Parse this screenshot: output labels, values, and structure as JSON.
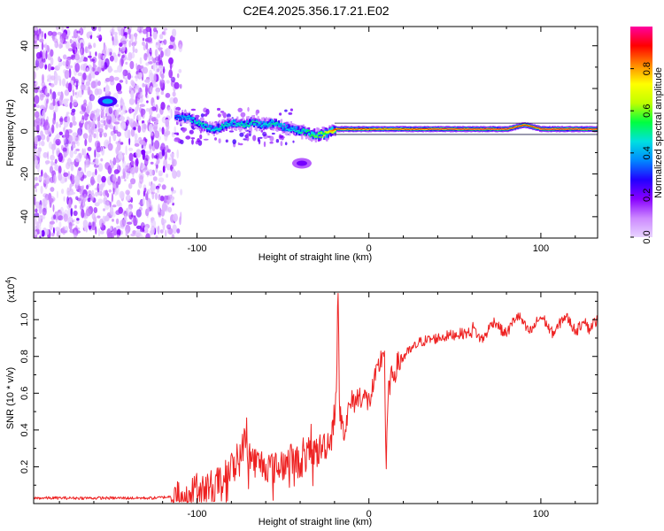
{
  "figure_title": "C2E4.2025.356.17.21.E02",
  "chart_data": [
    {
      "type": "heatmap",
      "title": "C2E4.2025.356.17.21.E02",
      "xlabel": "Height of straight line (km)",
      "ylabel": "Frequency (Hz)",
      "xlim": [
        -195,
        133
      ],
      "ylim": [
        -50,
        49
      ],
      "xticks": [
        -100,
        0,
        100
      ],
      "xtick_labels": [
        "-100",
        "0",
        "100"
      ],
      "yticks": [
        -40,
        -20,
        0,
        20,
        40
      ],
      "ytick_labels": [
        "-40",
        "-20",
        "0",
        "20",
        "40"
      ],
      "colorbar": {
        "label": "Normalized spectral amplitude",
        "range": [
          0,
          1
        ],
        "ticks": [
          0.0,
          0.2,
          0.4,
          0.6,
          0.8
        ],
        "tick_labels": [
          "0.0",
          "0.2",
          "0.4",
          "0.6",
          "0.8"
        ],
        "colors": [
          "#e8d4ff",
          "#cc88ff",
          "#8800ff",
          "#2200ff",
          "#0088ff",
          "#00e0e0",
          "#00ff40",
          "#c0ff00",
          "#ffff00",
          "#ff8800",
          "#ff0000",
          "#ff00a0"
        ]
      },
      "noise_region_x": [
        -195,
        -113
      ],
      "ridge": {
        "x": [
          -113,
          -105,
          -98,
          -92,
          -86,
          -80,
          -74,
          -68,
          -62,
          -56,
          -50,
          -45,
          -40,
          -35,
          -30,
          -25,
          -20,
          -10,
          0,
          10,
          20,
          40,
          60,
          80,
          90,
          100,
          133
        ],
        "freq": [
          7,
          6,
          3,
          1,
          2,
          4,
          3,
          4,
          3,
          4,
          2,
          1,
          0,
          -1,
          -2,
          -1,
          1,
          1,
          1,
          1,
          1,
          1,
          1,
          1,
          3,
          1,
          1
        ],
        "peak_amplitude": [
          0.35,
          0.45,
          0.5,
          0.45,
          0.5,
          0.45,
          0.5,
          0.5,
          0.45,
          0.5,
          0.45,
          0.45,
          0.5,
          0.55,
          0.6,
          0.7,
          0.9,
          0.9,
          0.9,
          0.85,
          0.9,
          0.95,
          0.95,
          0.95,
          0.9,
          0.95,
          0.95
        ]
      },
      "isolated_features": [
        {
          "x": -152,
          "freq": 14,
          "amplitude": 0.4
        },
        {
          "x": -39,
          "freq": -15,
          "amplitude": 0.2
        }
      ]
    },
    {
      "type": "line",
      "xlabel": "Height of straight line (km)",
      "ylabel": "SNR (10 * v/v)",
      "y_multiplier_label": "(x10",
      "y_multiplier_exponent": "4",
      "y_multiplier_suffix": ")",
      "color": "#ee2222",
      "xlim": [
        -195,
        133
      ],
      "ylim": [
        0,
        1.15
      ],
      "xticks": [
        -100,
        0,
        100
      ],
      "xtick_labels": [
        "-100",
        "0",
        "100"
      ],
      "yticks": [
        0.2,
        0.4,
        0.6,
        0.8,
        1.0
      ],
      "ytick_labels": [
        "0.2",
        "0.4",
        "0.6",
        "0.8",
        "1.0"
      ],
      "series": [
        {
          "name": "SNR",
          "x": [
            -195,
            -170,
            -140,
            -125,
            -112,
            -105,
            -100,
            -95,
            -90,
            -85,
            -80,
            -75,
            -72,
            -70,
            -65,
            -60,
            -55,
            -50,
            -45,
            -40,
            -35,
            -30,
            -26,
            -22,
            -19,
            -18,
            -17,
            -16,
            -14,
            -12,
            -10,
            -8,
            -5,
            -3,
            0,
            3,
            6,
            9,
            10,
            11,
            12,
            14,
            17,
            20,
            25,
            30,
            40,
            50,
            60,
            70,
            80,
            90,
            100,
            110,
            120,
            125,
            128,
            133
          ],
          "y": [
            0.03,
            0.03,
            0.03,
            0.03,
            0.04,
            0.06,
            0.07,
            0.09,
            0.1,
            0.13,
            0.19,
            0.24,
            0.36,
            0.26,
            0.22,
            0.21,
            0.19,
            0.21,
            0.24,
            0.22,
            0.27,
            0.28,
            0.32,
            0.35,
            0.6,
            1.15,
            0.5,
            0.45,
            0.4,
            0.5,
            0.55,
            0.56,
            0.59,
            0.58,
            0.55,
            0.65,
            0.75,
            0.85,
            0.15,
            0.55,
            0.65,
            0.7,
            0.76,
            0.8,
            0.84,
            0.88,
            0.9,
            0.92,
            0.93,
            0.94,
            0.97,
            0.98,
            0.97,
            0.97,
            0.98,
            1.0,
            0.9,
            1.03
          ]
        }
      ]
    }
  ]
}
